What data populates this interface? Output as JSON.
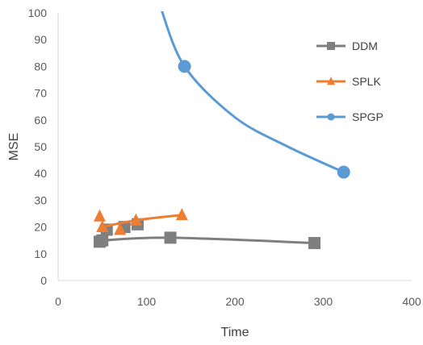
{
  "chart_data": {
    "type": "scatter",
    "title": "",
    "xlabel": "Time",
    "ylabel": "MSE",
    "xlim": [
      0,
      400
    ],
    "ylim": [
      0,
      100
    ],
    "xticks": [
      "0",
      "100",
      "200",
      "300",
      "400"
    ],
    "yticks": [
      "0",
      "10",
      "20",
      "30",
      "40",
      "50",
      "60",
      "70",
      "80",
      "90",
      "100"
    ],
    "grid": false,
    "legend_position": "right",
    "series": [
      {
        "name": "DDM",
        "color": "#7f7f7f",
        "marker": "square",
        "points": [
          [
            47,
            14.5
          ],
          [
            50,
            15
          ],
          [
            55,
            19
          ],
          [
            75,
            20
          ],
          [
            90,
            21
          ],
          [
            127,
            16
          ],
          [
            290,
            14
          ]
        ],
        "curve": [
          [
            50,
            15
          ],
          [
            127,
            16
          ],
          [
            290,
            14
          ]
        ]
      },
      {
        "name": "SPLK",
        "color": "#ed7d31",
        "marker": "triangle",
        "points": [
          [
            47,
            24
          ],
          [
            50,
            20
          ],
          [
            70,
            19
          ],
          [
            88,
            22.5
          ],
          [
            140,
            24.5
          ]
        ],
        "curve": [
          [
            50,
            20
          ],
          [
            88,
            22.5
          ],
          [
            140,
            24.5
          ]
        ]
      },
      {
        "name": "SPGP",
        "color": "#5b9bd5",
        "marker": "circle",
        "points": [
          [
            143,
            80
          ],
          [
            323,
            40.5
          ]
        ],
        "curve": [
          [
            116,
            102
          ],
          [
            143,
            80
          ],
          [
            200,
            61
          ],
          [
            260,
            50
          ],
          [
            323,
            40.5
          ]
        ]
      }
    ]
  }
}
